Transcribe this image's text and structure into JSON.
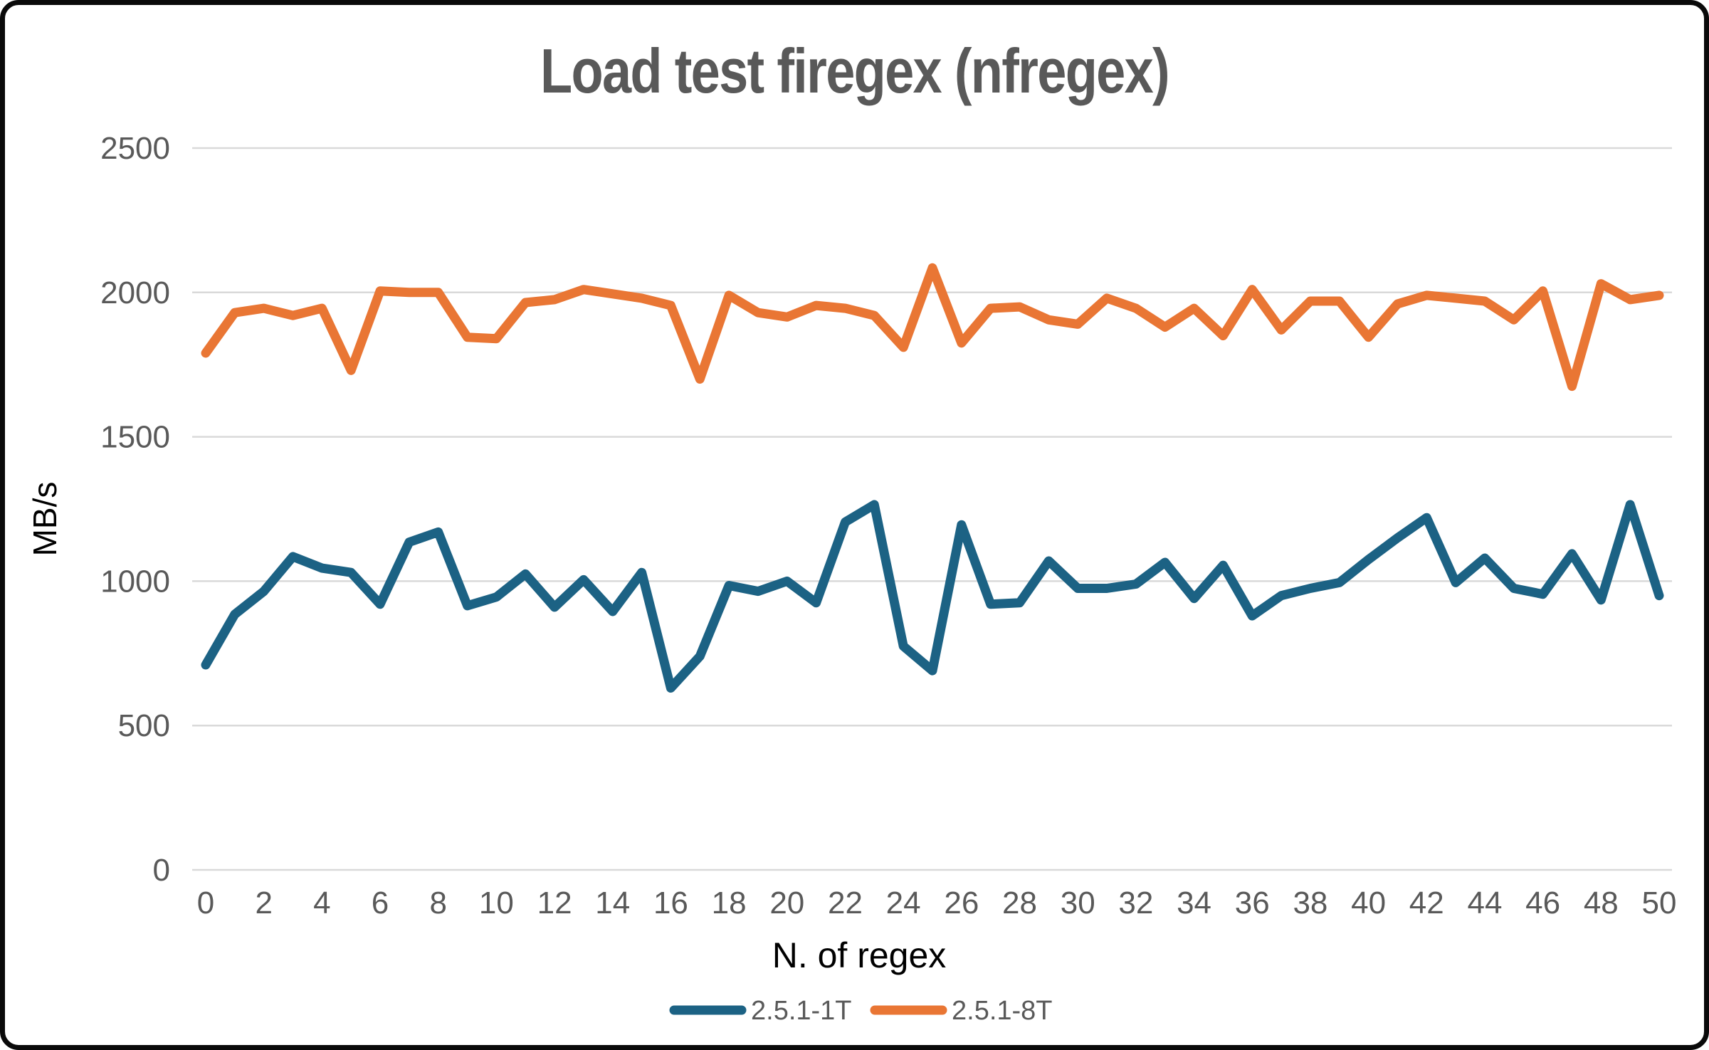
{
  "chart_data": {
    "type": "line",
    "title": "Load test firegex (nfregex)",
    "xlabel": "N. of regex",
    "ylabel": "MB/s",
    "x": [
      0,
      1,
      2,
      3,
      4,
      5,
      6,
      7,
      8,
      9,
      10,
      11,
      12,
      13,
      14,
      15,
      16,
      17,
      18,
      19,
      20,
      21,
      22,
      23,
      24,
      25,
      26,
      27,
      28,
      29,
      30,
      31,
      32,
      33,
      34,
      35,
      36,
      37,
      38,
      39,
      40,
      41,
      42,
      43,
      44,
      45,
      46,
      47,
      48,
      49,
      50
    ],
    "series": [
      {
        "name": "2.5.1-1T",
        "color": "#1C6284",
        "values": [
          710,
          885,
          965,
          1085,
          1045,
          1030,
          920,
          1135,
          1170,
          915,
          945,
          1025,
          910,
          1005,
          895,
          1030,
          630,
          740,
          985,
          965,
          1000,
          925,
          1205,
          1265,
          775,
          690,
          1195,
          920,
          925,
          1070,
          975,
          975,
          990,
          1065,
          940,
          1055,
          880,
          950,
          975,
          995,
          1075,
          1150,
          1220,
          995,
          1080,
          975,
          955,
          1095,
          935,
          1265,
          950
        ]
      },
      {
        "name": "2.5.1-8T",
        "color": "#E97634",
        "values": [
          1790,
          1930,
          1945,
          1920,
          1945,
          1730,
          2005,
          2000,
          2000,
          1845,
          1840,
          1965,
          1975,
          2010,
          1995,
          1980,
          1955,
          1700,
          1990,
          1930,
          1915,
          1955,
          1945,
          1920,
          1810,
          2085,
          1825,
          1945,
          1950,
          1905,
          1890,
          1980,
          1945,
          1880,
          1945,
          1850,
          2010,
          1870,
          1970,
          1970,
          1845,
          1960,
          1990,
          1980,
          1970,
          1905,
          2005,
          1675,
          2030,
          1975,
          1990
        ]
      }
    ],
    "ylim": [
      0,
      2500
    ],
    "yticks": [
      0,
      500,
      1000,
      1500,
      2000,
      2500
    ],
    "xtick_step": 2,
    "grid": true,
    "legend_position": "bottom"
  },
  "style": {
    "grid_color": "#D9D9D9",
    "tick_label_color": "#595959",
    "axis_title_color": "#000000",
    "title_color": "#595959",
    "legend_text_color": "#595959",
    "background": "#FFFFFF",
    "border_color": "#0A0A0A"
  }
}
